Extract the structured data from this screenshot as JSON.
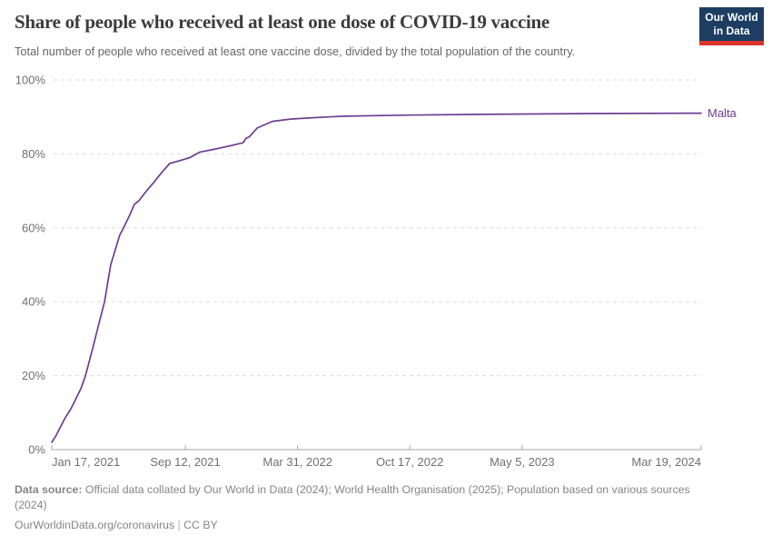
{
  "header": {
    "title": "Share of people who received at least one dose of COVID-19 vaccine",
    "subtitle": "Total number of people who received at least one vaccine dose, divided by the total population of the country.",
    "logo": {
      "line1": "Our World",
      "line2": "in Data"
    }
  },
  "chart_data": {
    "type": "line",
    "title": "Share of people who received at least one dose of COVID-19 vaccine",
    "xlabel": "",
    "ylabel": "",
    "x_range": [
      "2021-01-17",
      "2024-03-19"
    ],
    "ylim": [
      0,
      100
    ],
    "grid": "horizontal-dashed",
    "legend_position": "right-end-label",
    "y_ticks": [
      {
        "value": 0,
        "label": "0%"
      },
      {
        "value": 20,
        "label": "20%"
      },
      {
        "value": 40,
        "label": "40%"
      },
      {
        "value": 60,
        "label": "60%"
      },
      {
        "value": 80,
        "label": "80%"
      },
      {
        "value": 100,
        "label": "100%"
      }
    ],
    "x_ticks": [
      {
        "date": "2021-01-17",
        "label": "Jan 17, 2021"
      },
      {
        "date": "2021-09-12",
        "label": "Sep 12, 2021"
      },
      {
        "date": "2022-03-31",
        "label": "Mar 31, 2022"
      },
      {
        "date": "2022-10-17",
        "label": "Oct 17, 2022"
      },
      {
        "date": "2023-05-05",
        "label": "May 5, 2023"
      },
      {
        "date": "2024-03-19",
        "label": "Mar 19, 2024"
      }
    ],
    "series": [
      {
        "name": "Malta",
        "color": "#6d3e91",
        "points": [
          [
            "2021-01-17",
            2.0
          ],
          [
            "2021-01-24",
            3.6
          ],
          [
            "2021-01-30",
            5.4
          ],
          [
            "2021-02-10",
            8.6
          ],
          [
            "2021-02-20",
            11.0
          ],
          [
            "2021-02-28",
            13.5
          ],
          [
            "2021-03-10",
            16.5
          ],
          [
            "2021-03-18",
            20.0
          ],
          [
            "2021-04-01",
            28.0
          ],
          [
            "2021-04-10",
            33.5
          ],
          [
            "2021-04-21",
            40.0
          ],
          [
            "2021-05-02",
            50.0
          ],
          [
            "2021-05-12",
            55.0
          ],
          [
            "2021-05-18",
            58.0
          ],
          [
            "2021-05-25",
            60.0
          ],
          [
            "2021-06-05",
            63.5
          ],
          [
            "2021-06-13",
            66.3
          ],
          [
            "2021-06-21",
            67.3
          ],
          [
            "2021-07-05",
            70.0
          ],
          [
            "2021-07-19",
            72.5
          ],
          [
            "2021-08-01",
            75.0
          ],
          [
            "2021-08-15",
            77.4
          ],
          [
            "2021-09-05",
            78.3
          ],
          [
            "2021-09-20",
            79.0
          ],
          [
            "2021-10-08",
            80.5
          ],
          [
            "2021-11-01",
            81.2
          ],
          [
            "2021-11-25",
            82.0
          ],
          [
            "2021-12-15",
            82.7
          ],
          [
            "2021-12-24",
            83.0
          ],
          [
            "2021-12-29",
            84.2
          ],
          [
            "2022-01-04",
            84.6
          ],
          [
            "2022-01-18",
            87.0
          ],
          [
            "2022-02-14",
            88.8
          ],
          [
            "2022-03-18",
            89.4
          ],
          [
            "2022-04-20",
            89.7
          ],
          [
            "2022-05-25",
            90.0
          ],
          [
            "2022-06-24",
            90.2
          ],
          [
            "2022-10-15",
            90.5
          ],
          [
            "2023-02-26",
            90.7
          ],
          [
            "2023-09-04",
            90.9
          ],
          [
            "2024-03-19",
            91.0
          ]
        ]
      }
    ]
  },
  "footer": {
    "source_label": "Data source:",
    "source_line1": " Official data collated by Our World in Data (2024); World Health Organisation (2025); Population based on various sources",
    "source_line2": "(2024)",
    "link": "OurWorldinData.org/coronavirus",
    "separator": " | ",
    "license": "CC BY"
  },
  "colors": {
    "line": "#6d3e91",
    "grid": "#dadada",
    "axis": "#a6a6a6",
    "tick_label": "#707070",
    "logo_bg": "#1d3d63",
    "logo_bar": "#dc352c"
  }
}
